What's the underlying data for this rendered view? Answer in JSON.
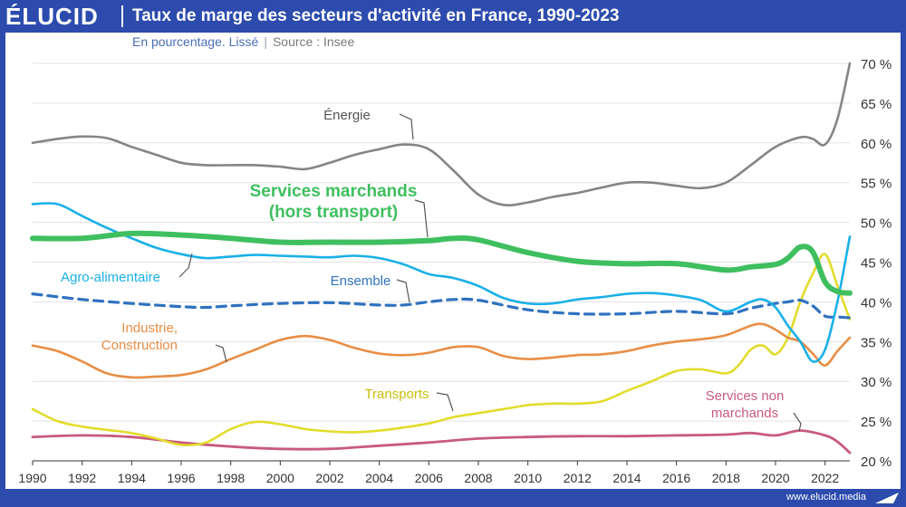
{
  "header": {
    "logo": "ÉLUCID",
    "title": "Taux de marge des secteurs d'activité en France, 1990-2023",
    "subtitle_main": "En pourcentage. Lissé",
    "subtitle_sep": "|",
    "subtitle_source": "Source : Insee"
  },
  "footer": {
    "site": "www.elucid.media"
  },
  "colors": {
    "brand": "#2c4bad",
    "energie": "#858585",
    "services_marchands": "#3fbf5f",
    "agro": "#1ab0e8",
    "ensemble": "#2f72c0",
    "industrie": "#e88e45",
    "transports": "#e3dc2c",
    "services_non_marchands": "#c85a7e"
  },
  "chart_data": {
    "type": "line",
    "title": "Taux de marge des secteurs d'activité en France, 1990-2023",
    "subtitle": "En pourcentage. Lissé",
    "xlim": [
      1990,
      2023
    ],
    "ylim": [
      20,
      70
    ],
    "x_ticks": [
      "1990",
      "1992",
      "1994",
      "1996",
      "1998",
      "2000",
      "2002",
      "2004",
      "2006",
      "2008",
      "2010",
      "2012",
      "2014",
      "2016",
      "2018",
      "2020",
      "2022"
    ],
    "y_ticks": [
      "20 %",
      "25 %",
      "30 %",
      "35 %",
      "40 %",
      "45 %",
      "50 %",
      "55 %",
      "60 %",
      "65 %",
      "70 %"
    ],
    "y_tick_values": [
      20,
      25,
      30,
      35,
      40,
      45,
      50,
      55,
      60,
      65,
      70
    ],
    "grid": "horizontal",
    "series": [
      {
        "name": "Énergie",
        "key": "energie",
        "x": [
          1990,
          1991,
          1992,
          1993,
          1994,
          1995,
          1996,
          1997,
          1998,
          1999,
          2000,
          2001,
          2002,
          2003,
          2004,
          2005,
          2006,
          2007,
          2008,
          2009,
          2010,
          2011,
          2012,
          2013,
          2014,
          2015,
          2016,
          2017,
          2018,
          2019,
          2020,
          2021,
          2021.5,
          2022,
          2022.5,
          2023
        ],
        "y": [
          60,
          60.5,
          60.8,
          60.6,
          59.5,
          58.5,
          57.5,
          57.2,
          57.2,
          57.2,
          57,
          56.7,
          57.5,
          58.5,
          59.2,
          59.8,
          59.2,
          56.5,
          53.5,
          52.2,
          52.5,
          53.2,
          53.7,
          54.4,
          55,
          55,
          54.6,
          54.3,
          55,
          57.2,
          59.5,
          60.7,
          60.5,
          59.8,
          63,
          70
        ]
      },
      {
        "name": "Services marchands (hors transport)",
        "key": "services_marchands",
        "x": [
          1990,
          1992,
          1994,
          1996,
          1998,
          2000,
          2002,
          2004,
          2006,
          2007,
          2008,
          2010,
          2012,
          2014,
          2016,
          2018,
          2019,
          2020,
          2020.5,
          2021,
          2021.5,
          2022,
          2022.5,
          2023
        ],
        "y": [
          48,
          48,
          48.6,
          48.4,
          48,
          47.5,
          47.5,
          47.5,
          47.7,
          48,
          47.8,
          46.2,
          45.1,
          44.8,
          44.8,
          44,
          44.4,
          44.7,
          45.5,
          46.9,
          46.3,
          42.5,
          41.3,
          41.1
        ]
      },
      {
        "name": "Agro-alimentaire",
        "key": "agro",
        "x": [
          1990,
          1991,
          1992,
          1993,
          1994,
          1995,
          1996,
          1997,
          1998,
          1999,
          2000,
          2001,
          2002,
          2003,
          2004,
          2005,
          2006,
          2007,
          2008,
          2009,
          2010,
          2011,
          2012,
          2013,
          2014,
          2015,
          2016,
          2017,
          2018,
          2019,
          2019.5,
          2020,
          2020.5,
          2021,
          2021.5,
          2022,
          2022.5,
          2023
        ],
        "y": [
          52.3,
          52.3,
          50.8,
          49.3,
          48,
          46.8,
          46,
          45.5,
          45.7,
          45.9,
          45.8,
          45.7,
          45.6,
          45.8,
          45.5,
          44.7,
          43.5,
          43,
          42,
          40.5,
          39.8,
          39.8,
          40.3,
          40.6,
          41,
          41.1,
          40.8,
          40.2,
          38.8,
          40,
          40.3,
          39.3,
          37,
          35,
          32.5,
          34,
          40,
          48.2
        ]
      },
      {
        "name": "Ensemble",
        "key": "ensemble",
        "dashed": true,
        "x": [
          1990,
          1992,
          1994,
          1996,
          1997,
          1998,
          2000,
          2002,
          2004,
          2005,
          2006,
          2007,
          2008,
          2010,
          2012,
          2014,
          2016,
          2018,
          2019,
          2020,
          2020.5,
          2021,
          2021.5,
          2022,
          2022.5,
          2023
        ],
        "y": [
          41,
          40.3,
          39.8,
          39.4,
          39.3,
          39.5,
          39.8,
          39.9,
          39.6,
          39.6,
          40,
          40.3,
          40.2,
          39,
          38.5,
          38.5,
          38.8,
          38.5,
          39.2,
          39.8,
          40,
          40.2,
          39.5,
          38.2,
          38.1,
          38
        ]
      },
      {
        "name": "Industrie, Construction",
        "key": "industrie",
        "x": [
          1990,
          1991,
          1992,
          1993,
          1994,
          1995,
          1996,
          1997,
          1998,
          1999,
          2000,
          2001,
          2002,
          2003,
          2004,
          2005,
          2006,
          2007,
          2008,
          2009,
          2010,
          2011,
          2012,
          2013,
          2014,
          2015,
          2016,
          2017,
          2018,
          2019,
          2019.5,
          2020,
          2020.5,
          2021,
          2021.5,
          2022,
          2022.5,
          2023
        ],
        "y": [
          34.5,
          33.8,
          32.5,
          31,
          30.5,
          30.6,
          30.8,
          31.5,
          32.8,
          34,
          35.2,
          35.7,
          35.2,
          34.2,
          33.5,
          33.3,
          33.6,
          34.3,
          34.3,
          33.2,
          32.8,
          33,
          33.3,
          33.4,
          33.8,
          34.5,
          35,
          35.3,
          35.8,
          37,
          37.2,
          36.5,
          35.5,
          35,
          33.5,
          32,
          33.8,
          35.5
        ]
      },
      {
        "name": "Transports",
        "key": "transports",
        "x": [
          1990,
          1991,
          1992,
          1993,
          1994,
          1995,
          1996,
          1997,
          1998,
          1999,
          2000,
          2001,
          2002,
          2003,
          2004,
          2005,
          2006,
          2007,
          2008,
          2009,
          2010,
          2011,
          2012,
          2013,
          2014,
          2015,
          2016,
          2017,
          2018,
          2018.5,
          2019,
          2019.5,
          2020,
          2020.5,
          2021,
          2021.5,
          2022,
          2022.5,
          2023
        ],
        "y": [
          26.5,
          25,
          24.3,
          23.9,
          23.5,
          22.8,
          22,
          22.3,
          24,
          24.9,
          24.6,
          24,
          23.7,
          23.6,
          23.8,
          24.2,
          24.7,
          25.5,
          26,
          26.5,
          27,
          27.2,
          27.2,
          27.5,
          28.8,
          30,
          31.3,
          31.5,
          31,
          32,
          34,
          34.5,
          33.4,
          35.5,
          40,
          43.5,
          46,
          42,
          37.8
        ]
      },
      {
        "name": "Services non marchands",
        "key": "services_non_marchands",
        "x": [
          1990,
          1992,
          1994,
          1996,
          1998,
          2000,
          2002,
          2004,
          2006,
          2008,
          2010,
          2012,
          2014,
          2016,
          2018,
          2019,
          2020,
          2021,
          2022,
          2022.5,
          2023
        ],
        "y": [
          23,
          23.2,
          23,
          22.3,
          21.8,
          21.5,
          21.5,
          21.9,
          22.3,
          22.8,
          23,
          23.1,
          23.1,
          23.2,
          23.3,
          23.5,
          23.2,
          23.8,
          23.2,
          22.4,
          21
        ]
      }
    ],
    "labels": [
      {
        "key": "energie",
        "lines": [
          "Énergie"
        ]
      },
      {
        "key": "services_marchands",
        "lines": [
          "Services marchands",
          "(hors transport)"
        ]
      },
      {
        "key": "agro",
        "lines": [
          "Agro-alimentaire"
        ]
      },
      {
        "key": "ensemble",
        "lines": [
          "Ensemble"
        ]
      },
      {
        "key": "industrie",
        "lines": [
          "Industrie,",
          "Construction"
        ]
      },
      {
        "key": "transports",
        "lines": [
          "Transports"
        ]
      },
      {
        "key": "services_non_marchands",
        "lines": [
          "Services non",
          "marchands"
        ]
      }
    ]
  }
}
